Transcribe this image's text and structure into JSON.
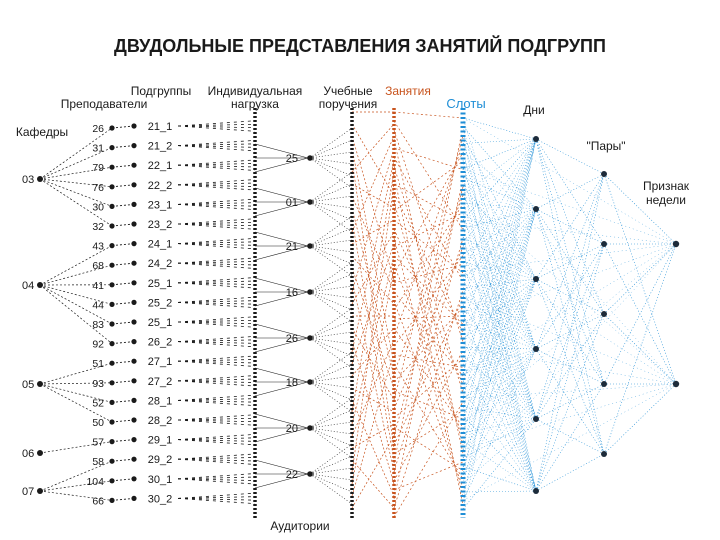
{
  "title": "ДВУДОЛЬНЫЕ ПРЕДСТАВЛЕНИЯ ЗАНЯТИЙ ПОДГРУПП",
  "colors": {
    "text": "#1a1a1a",
    "node": "#1a1a1a",
    "classes": "#c8541e",
    "slots": "#1f8ed6"
  },
  "headers": {
    "departments": "Кафедры",
    "teachers": "Преподаватели",
    "subgroups": "Подгруппы",
    "workload": "Индивидуальная\nнагрузка",
    "assignments": "Учебные\nпоручения",
    "classes": "Занятия",
    "slots": "Слоты",
    "days": "Дни",
    "pairs": "\"Пары\"",
    "week_sign": "Признак\nнедели",
    "rooms": "Аудитории"
  },
  "departments": [
    "03",
    "04",
    "05",
    "06",
    "07"
  ],
  "teachers": [
    "26",
    "31",
    "79",
    "76",
    "30",
    "32",
    "43",
    "68",
    "41",
    "44",
    "83",
    "92",
    "51",
    "93",
    "52",
    "50",
    "57",
    "58",
    "104",
    "66"
  ],
  "subgroups": [
    "21_1",
    "21_2",
    "22_1",
    "22_2",
    "23_1",
    "23_2",
    "24_1",
    "24_2",
    "25_1",
    "25_2",
    "25_1",
    "26_2",
    "27_1",
    "27_2",
    "28_1",
    "28_2",
    "29_1",
    "29_2",
    "30_1",
    "30_2"
  ],
  "rooms": [
    "25",
    "01",
    "21",
    "16",
    "26",
    "18",
    "20",
    "22"
  ]
}
